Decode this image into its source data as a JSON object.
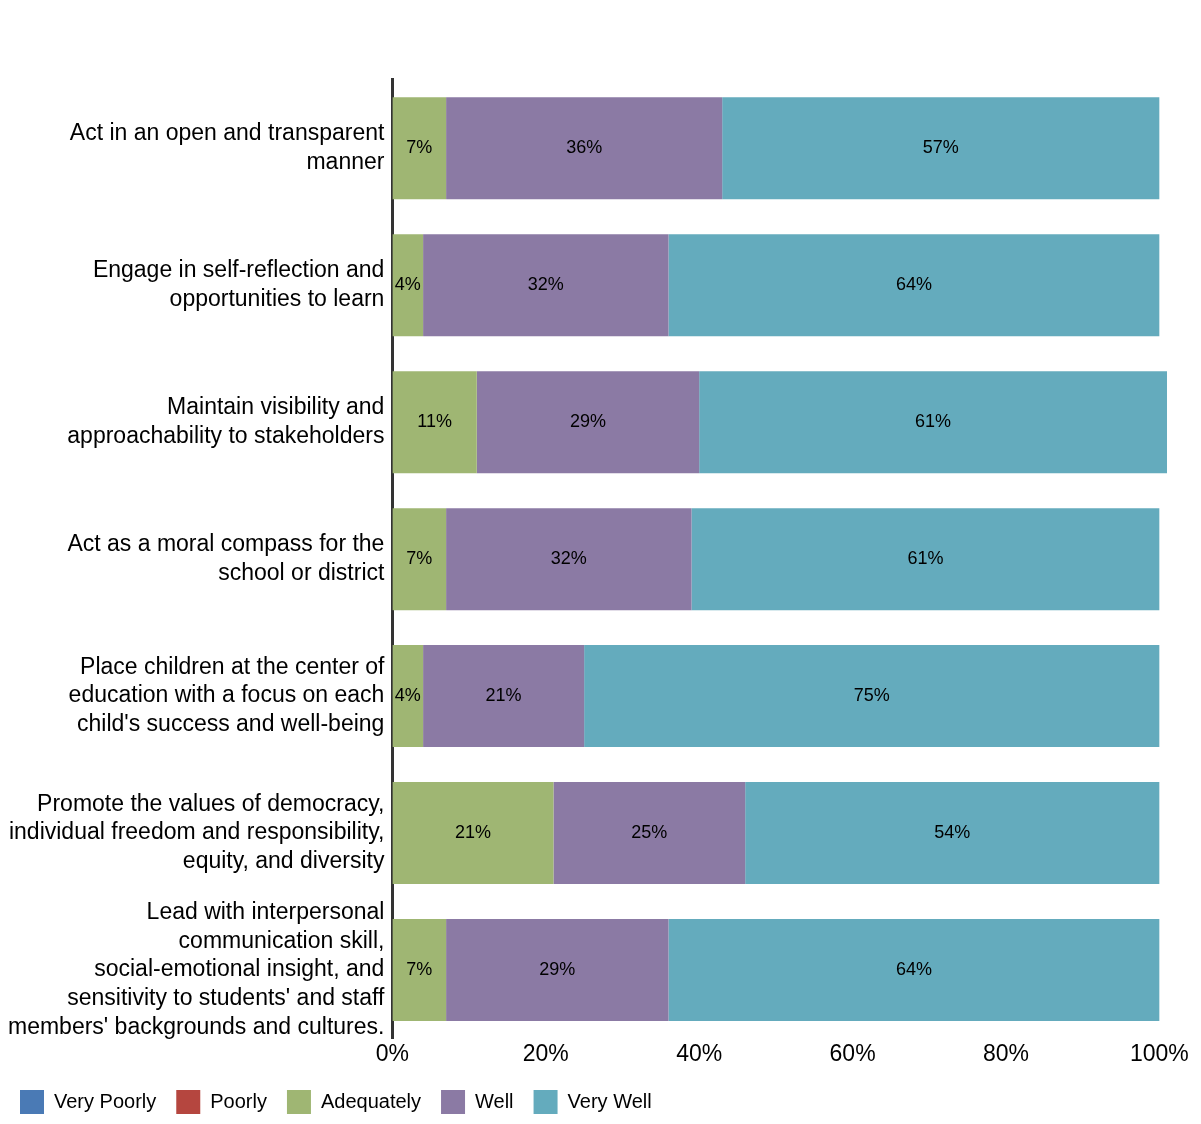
{
  "chart_data": {
    "type": "bar",
    "orientation": "horizontal",
    "stacked": true,
    "categories": [
      "Act in an open and transparent manner",
      "Engage in self-reflection and opportunities to learn",
      "Maintain visibility and approachability to stakeholders",
      "Act as a moral compass for the school or district",
      "Place children at the center of education with a focus on each child's success and well-being",
      "Promote the values of democracy, individual freedom and responsibility, equity, and diversity",
      "Lead with interpersonal communication skill, social-emotional insight, and sensitivity to students' and staff members' backgrounds and cultures."
    ],
    "series": [
      {
        "name": "Very Poorly",
        "color": "#4a7ab5",
        "values": [
          0,
          0,
          0,
          0,
          0,
          0,
          0
        ],
        "value_labels": [
          null,
          null,
          null,
          null,
          null,
          null,
          null
        ]
      },
      {
        "name": "Poorly",
        "color": "#b5463f",
        "values": [
          0,
          0,
          0,
          0,
          0,
          0,
          0
        ],
        "value_labels": [
          null,
          null,
          null,
          null,
          null,
          null,
          null
        ]
      },
      {
        "name": "Adequately",
        "color": "#9fb673",
        "values": [
          7,
          4,
          11,
          7,
          4,
          21,
          7
        ],
        "value_labels": [
          "7%",
          "4%",
          "11%",
          "7%",
          "4%",
          "21%",
          "7%"
        ]
      },
      {
        "name": "Well",
        "color": "#8b7aa4",
        "values": [
          36,
          32,
          29,
          32,
          21,
          25,
          29
        ],
        "value_labels": [
          "36%",
          "32%",
          "29%",
          "32%",
          "21%",
          "25%",
          "29%"
        ]
      },
      {
        "name": "Very Well",
        "color": "#64abbd",
        "values": [
          57,
          64,
          61,
          61,
          75,
          54,
          64
        ],
        "value_labels": [
          "57%",
          "64%",
          "61%",
          "61%",
          "75%",
          "54%",
          "64%"
        ]
      }
    ],
    "xlim": [
      0,
      101
    ],
    "xticks": [
      {
        "value": 0,
        "label": "0%"
      },
      {
        "value": 20,
        "label": "20%"
      },
      {
        "value": 40,
        "label": "40%"
      },
      {
        "value": 60,
        "label": "60%"
      },
      {
        "value": 80,
        "label": "80%"
      },
      {
        "value": 100,
        "label": "100%"
      }
    ],
    "legend": "bottom left",
    "grid": false
  }
}
